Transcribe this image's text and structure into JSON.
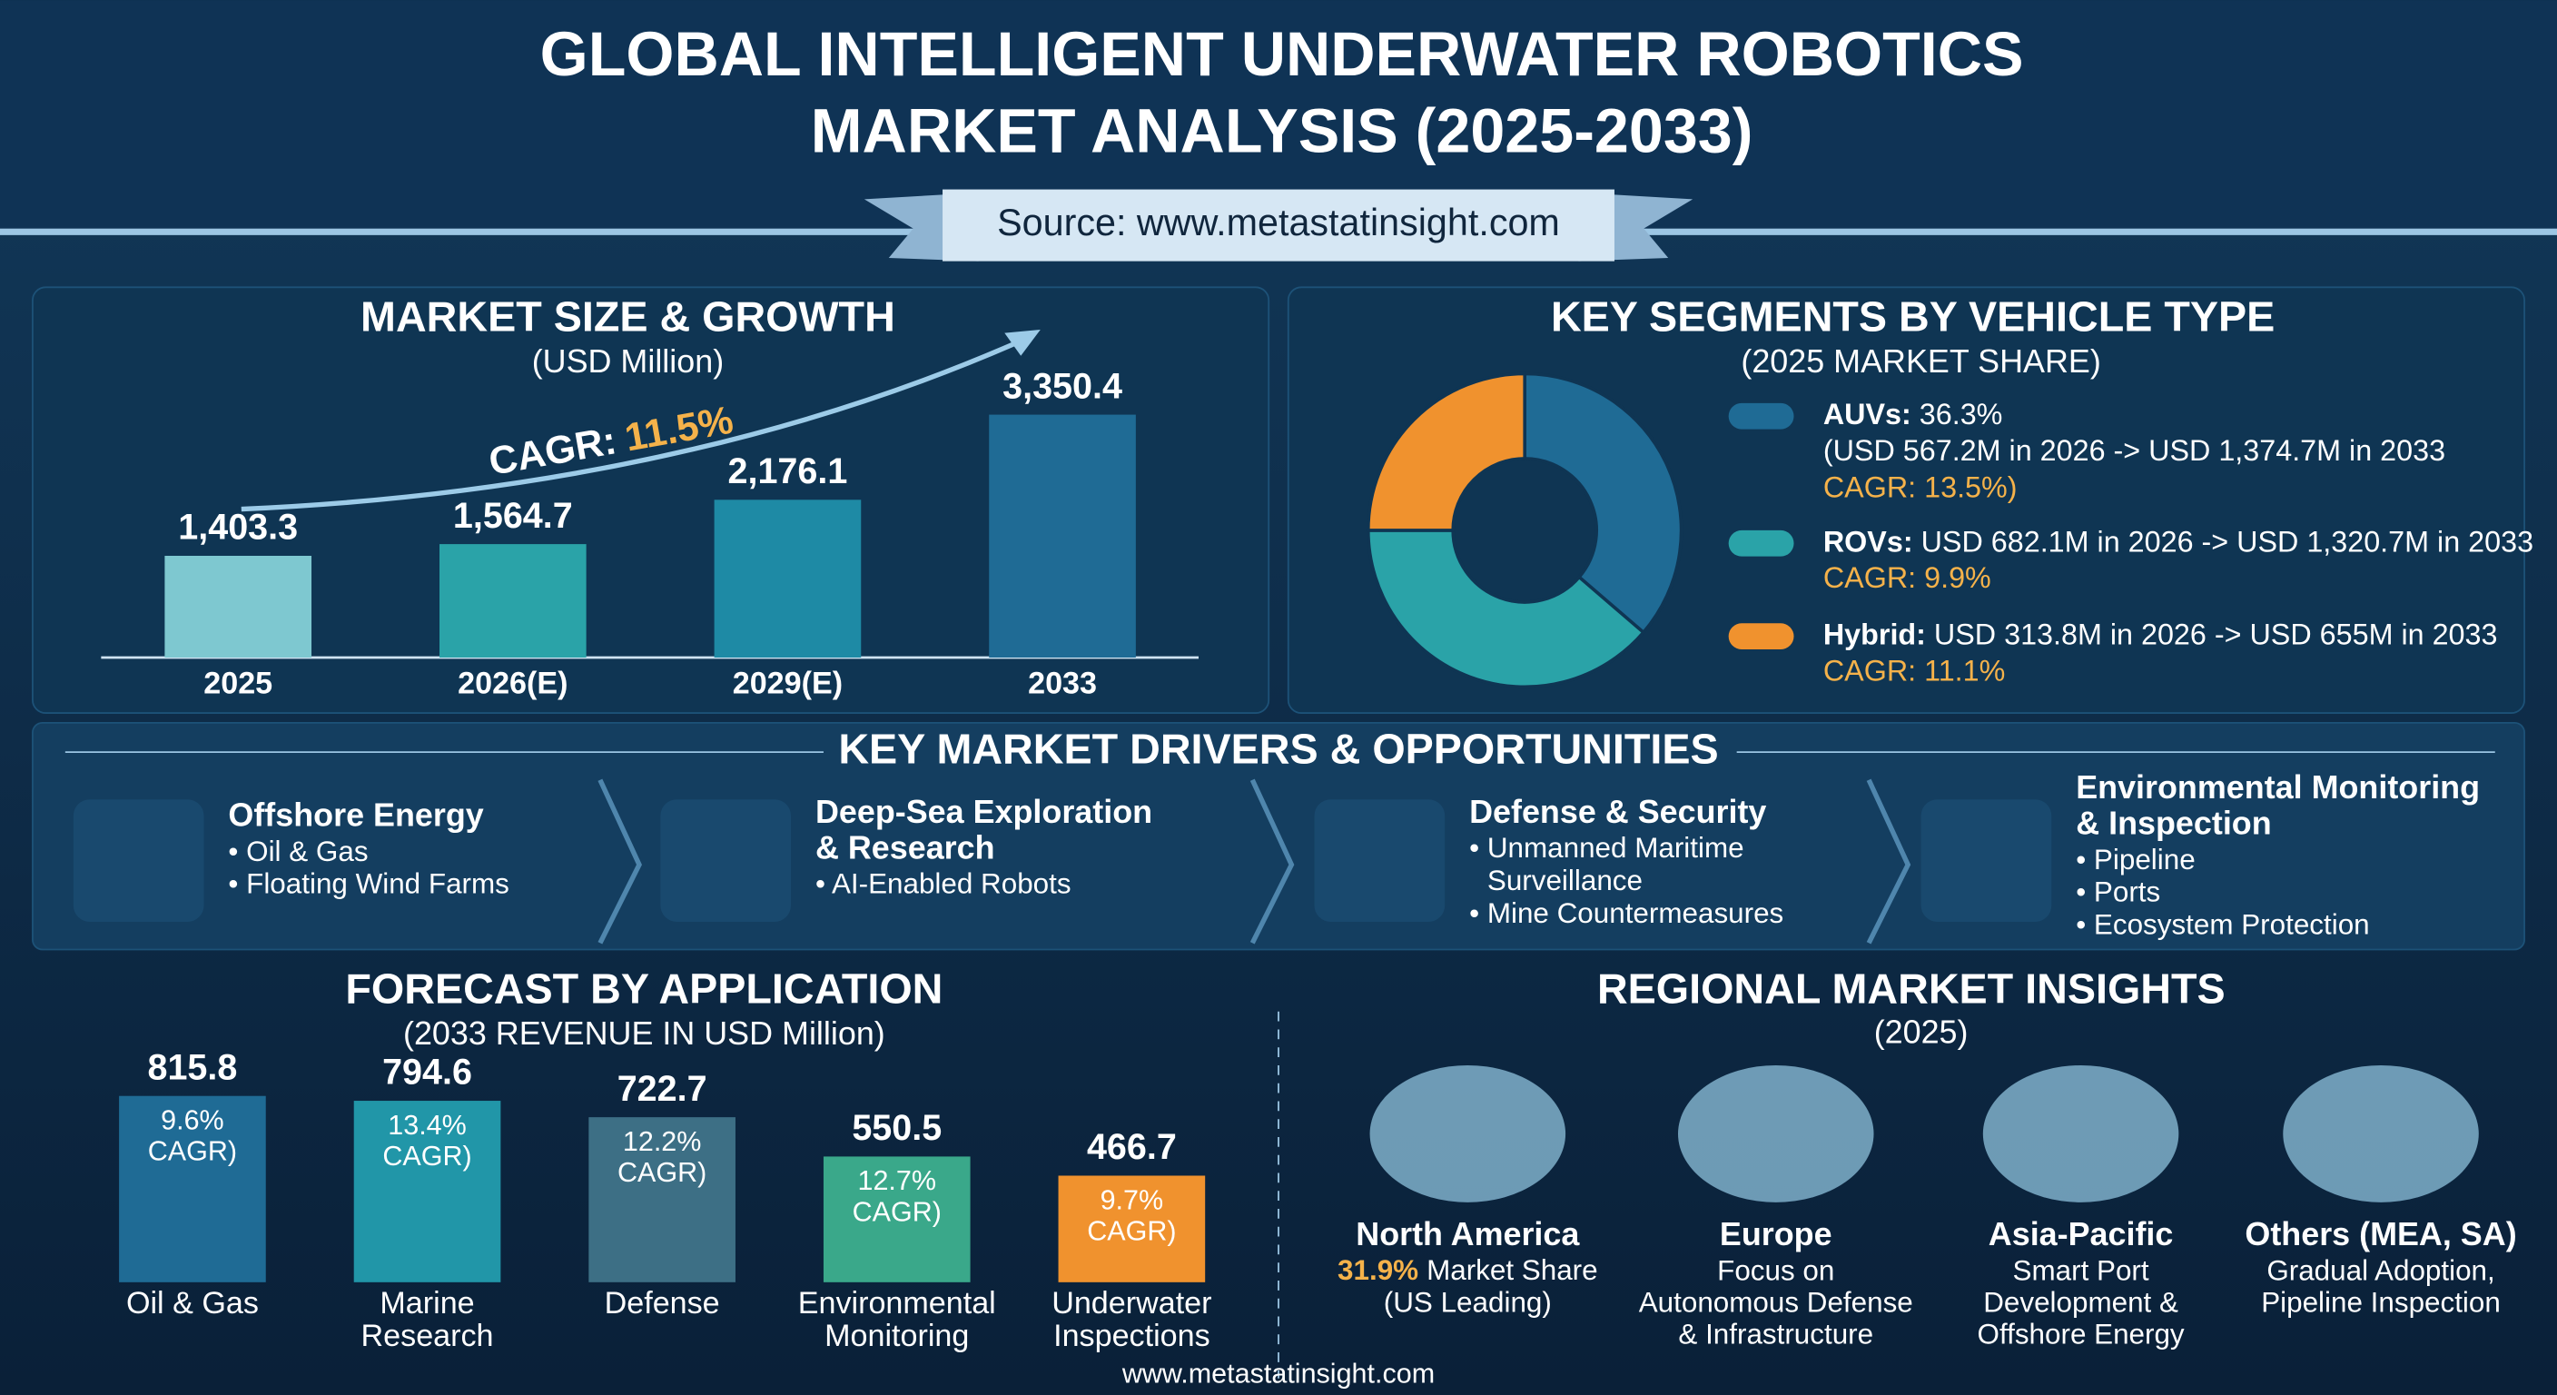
{
  "header": {
    "title_lines": [
      "GLOBAL INTELLIGENT UNDERWATER ROBOTICS",
      "MARKET ANALYSIS (2025-2033)"
    ],
    "source": "Source: www.metastatinsight.com"
  },
  "chart_data": [
    {
      "type": "bar",
      "title": "MARKET SIZE & GROWTH",
      "subtitle": "(USD Million)",
      "categories": [
        "2025",
        "2026(E)",
        "2029(E)",
        "2033"
      ],
      "values": [
        1403.3,
        1564.7,
        2176.1,
        3350.4
      ],
      "value_labels": [
        "1,403.3",
        "1,564.7",
        "2,176.1",
        "3,350.4"
      ],
      "colors": [
        "#7ec8d0",
        "#2aa3a8",
        "#1e8aa5",
        "#1f6b95"
      ],
      "ylim": [
        0,
        3600
      ],
      "annotation": {
        "label": "CAGR:",
        "value": "11.5%"
      }
    },
    {
      "type": "pie",
      "title": "KEY SEGMENTS BY VEHICLE TYPE",
      "subtitle": "(2025 MARKET SHARE)",
      "categories": [
        "AUVs:",
        "ROVs:",
        "Hybrid:"
      ],
      "values": [
        36.3,
        38.7,
        25
      ],
      "value_labels": [
        "36.3%",
        null,
        null
      ],
      "colors": [
        "#1f6b95",
        "#2aa3a8",
        "#f0922e"
      ],
      "details": [
        [
          "(USD 567.2M in 2026 -> USD 1,374.7M in 2033",
          "CAGR: 13.5%)"
        ],
        [
          "USD 682.1M in 2026 -> USD 1,320.7M in 2033",
          "CAGR: 9.9%"
        ],
        [
          "USD 313.8M in 2026 -> USD 655M in 2033",
          "CAGR: 11.1%"
        ]
      ]
    },
    {
      "type": "bar",
      "title": "FORECAST BY APPLICATION",
      "subtitle": "(2033 REVENUE IN USD Million)",
      "categories": [
        [
          "Oil & Gas"
        ],
        [
          "Marine",
          "Research"
        ],
        [
          "Defense"
        ],
        [
          "Environmental",
          "Monitoring"
        ],
        [
          "Underwater",
          "Inspections"
        ]
      ],
      "values": [
        815.8,
        794.6,
        722.7,
        550.5,
        466.7
      ],
      "annotations": [
        [
          "9.6%",
          "CAGR)"
        ],
        [
          "13.4%",
          "CAGR)"
        ],
        [
          "12.2%",
          "CAGR)"
        ],
        [
          "12.7%",
          "CAGR)"
        ],
        [
          "9.7%",
          "CAGR)"
        ]
      ],
      "colors": [
        "#1f6b95",
        "#2196a8",
        "#3d6f85",
        "#3aa88a",
        "#f0922e"
      ],
      "ylim": [
        0,
        900
      ]
    }
  ],
  "drivers": {
    "title": "KEY MARKET DRIVERS & OPPORTUNITIES",
    "items": [
      {
        "title": [
          "Offshore Energy"
        ],
        "bullets": [
          "• Oil & Gas",
          "• Floating Wind Farms"
        ]
      },
      {
        "title": [
          "Deep-Sea Exploration",
          "& Research"
        ],
        "bullets": [
          "• AI-Enabled Robots"
        ]
      },
      {
        "title": [
          "Defense & Security"
        ],
        "bullets": [
          "• Unmanned Maritime",
          "Surveillance",
          "• Mine Countermeasures"
        ]
      },
      {
        "title": [
          "Environmental Monitoring",
          "& Inspection"
        ],
        "bullets": [
          "• Pipeline",
          "• Ports",
          "• Ecosystem Protection"
        ]
      }
    ]
  },
  "regions": {
    "title": "REGIONAL MARKET INSIGHTS",
    "subtitle": "(2025)",
    "items": [
      {
        "name": "North America",
        "share": "31.9%",
        "lines": [
          "Market Share",
          "(US Leading)"
        ]
      },
      {
        "name": "Europe",
        "lines": [
          "Focus on",
          "Autonomous Defense",
          "& Infrastructure"
        ]
      },
      {
        "name": "Asia-Pacific",
        "lines": [
          "Smart Port",
          "Development &",
          "Offshore Energy"
        ]
      },
      {
        "name": "Others (MEA, SA)",
        "lines": [
          "Gradual Adoption,",
          "Pipeline Inspection"
        ]
      }
    ]
  },
  "footer": "www.metastatinsight.com"
}
